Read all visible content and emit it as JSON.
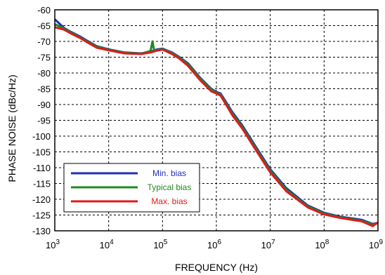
{
  "chart_data": {
    "type": "line",
    "xlabel": "FREQUENCY (Hz)",
    "ylabel": "PHASE NOISE (dBc/Hz)",
    "x_scale": "log",
    "xlim": [
      1000,
      1000000000
    ],
    "ylim": [
      -130,
      -60
    ],
    "grid": true,
    "legend_position": "lower-left",
    "x_ticks": [
      {
        "value": 1000,
        "base": "10",
        "exp": "3"
      },
      {
        "value": 10000,
        "base": "10",
        "exp": "4"
      },
      {
        "value": 100000,
        "base": "10",
        "exp": "5"
      },
      {
        "value": 1000000,
        "base": "10",
        "exp": "6"
      },
      {
        "value": 10000000,
        "base": "10",
        "exp": "7"
      },
      {
        "value": 100000000,
        "base": "10",
        "exp": "8"
      },
      {
        "value": 1000000000,
        "base": "10",
        "exp": "9"
      }
    ],
    "y_ticks": [
      -60,
      -65,
      -70,
      -75,
      -80,
      -85,
      -90,
      -95,
      -100,
      -105,
      -110,
      -115,
      -120,
      -125,
      -130
    ],
    "series": [
      {
        "name": "Min. bias",
        "color": "#1f2fb4",
        "points": [
          [
            1000,
            -63
          ],
          [
            1500,
            -65.8
          ],
          [
            2000,
            -67
          ],
          [
            3000,
            -68.5
          ],
          [
            4000,
            -69.8
          ],
          [
            6000,
            -71.5
          ],
          [
            10000,
            -72.5
          ],
          [
            20000,
            -73.5
          ],
          [
            40000,
            -73.8
          ],
          [
            60000,
            -73.3
          ],
          [
            80000,
            -72.5
          ],
          [
            100000,
            -72.3
          ],
          [
            150000,
            -73.5
          ],
          [
            200000,
            -74.8
          ],
          [
            300000,
            -77
          ],
          [
            500000,
            -81.5
          ],
          [
            800000,
            -85
          ],
          [
            1000000,
            -86
          ],
          [
            1200000,
            -86.5
          ],
          [
            2000000,
            -92.5
          ],
          [
            3000000,
            -96.5
          ],
          [
            5000000,
            -102.5
          ],
          [
            10000000,
            -110.5
          ],
          [
            20000000,
            -116.5
          ],
          [
            50000000,
            -122
          ],
          [
            100000000,
            -124.3
          ],
          [
            200000000,
            -125.5
          ],
          [
            500000000,
            -126.5
          ],
          [
            800000000,
            -127.8
          ],
          [
            1000000000,
            -127.5
          ]
        ]
      },
      {
        "name": "Typical bias",
        "color": "#1e8a1e",
        "points": [
          [
            1000,
            -64.5
          ],
          [
            1500,
            -66
          ],
          [
            2000,
            -67.2
          ],
          [
            3000,
            -68.8
          ],
          [
            4000,
            -70
          ],
          [
            6000,
            -71.7
          ],
          [
            10000,
            -72.6
          ],
          [
            20000,
            -73.6
          ],
          [
            40000,
            -73.9
          ],
          [
            60000,
            -73
          ],
          [
            65000,
            -70
          ],
          [
            70000,
            -73
          ],
          [
            80000,
            -72.8
          ],
          [
            100000,
            -72.4
          ],
          [
            150000,
            -73.7
          ],
          [
            200000,
            -75
          ],
          [
            300000,
            -77.3
          ],
          [
            500000,
            -81.8
          ],
          [
            800000,
            -85.3
          ],
          [
            1000000,
            -86.3
          ],
          [
            1200000,
            -86.8
          ],
          [
            2000000,
            -93
          ],
          [
            3000000,
            -97
          ],
          [
            5000000,
            -103
          ],
          [
            10000000,
            -111
          ],
          [
            20000000,
            -117
          ],
          [
            50000000,
            -122.3
          ],
          [
            100000000,
            -124.5
          ],
          [
            200000000,
            -125.7
          ],
          [
            500000000,
            -126.8
          ],
          [
            800000000,
            -128
          ],
          [
            1000000000,
            -127.6
          ]
        ]
      },
      {
        "name": "Max. bias",
        "color": "#e01a1a",
        "points": [
          [
            1000,
            -65.5
          ],
          [
            1500,
            -66.3
          ],
          [
            2000,
            -67.5
          ],
          [
            3000,
            -69
          ],
          [
            4000,
            -70.3
          ],
          [
            6000,
            -72
          ],
          [
            10000,
            -72.8
          ],
          [
            20000,
            -73.8
          ],
          [
            40000,
            -74
          ],
          [
            60000,
            -73.5
          ],
          [
            80000,
            -72.9
          ],
          [
            100000,
            -72.6
          ],
          [
            150000,
            -74
          ],
          [
            200000,
            -75.3
          ],
          [
            300000,
            -77.8
          ],
          [
            500000,
            -82.3
          ],
          [
            800000,
            -85.8
          ],
          [
            1000000,
            -86.5
          ],
          [
            1200000,
            -87.2
          ],
          [
            2000000,
            -93.5
          ],
          [
            3000000,
            -97.5
          ],
          [
            5000000,
            -103.5
          ],
          [
            10000000,
            -111.5
          ],
          [
            20000000,
            -117.5
          ],
          [
            50000000,
            -122.6
          ],
          [
            100000000,
            -124.8
          ],
          [
            200000000,
            -125.9
          ],
          [
            500000000,
            -127
          ],
          [
            800000000,
            -128.5
          ],
          [
            1000000000,
            -127.3
          ]
        ]
      }
    ]
  }
}
